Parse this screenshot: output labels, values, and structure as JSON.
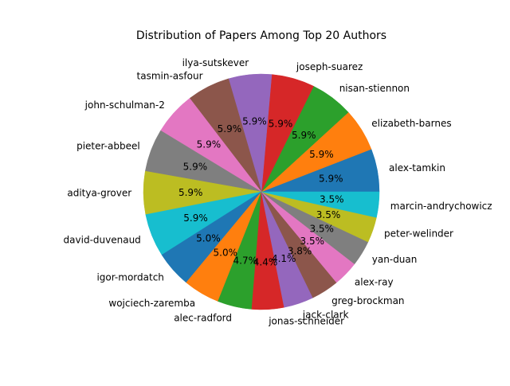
{
  "chart_data": {
    "type": "pie",
    "title": "Distribution of Papers Among Top 20 Authors",
    "start_angle_deg": 0,
    "direction": "counterclockwise",
    "slices": [
      {
        "label": "alex-tamkin",
        "pct_label": "5.9%",
        "value": 5.9,
        "color": "#1f77b4"
      },
      {
        "label": "elizabeth-barnes",
        "pct_label": "5.9%",
        "value": 5.9,
        "color": "#ff7f0e"
      },
      {
        "label": "nisan-stiennon",
        "pct_label": "5.9%",
        "value": 5.9,
        "color": "#2ca02c"
      },
      {
        "label": "joseph-suarez",
        "pct_label": "5.9%",
        "value": 5.9,
        "color": "#d62728"
      },
      {
        "label": "ilya-sutskever",
        "pct_label": "5.9%",
        "value": 5.9,
        "color": "#9467bd"
      },
      {
        "label": "tasmin-asfour",
        "pct_label": "5.9%",
        "value": 5.9,
        "color": "#8c564b"
      },
      {
        "label": "john-schulman-2",
        "pct_label": "5.9%",
        "value": 5.9,
        "color": "#e377c2"
      },
      {
        "label": "pieter-abbeel",
        "pct_label": "5.9%",
        "value": 5.9,
        "color": "#7f7f7f"
      },
      {
        "label": "aditya-grover",
        "pct_label": "5.9%",
        "value": 5.9,
        "color": "#bcbd22"
      },
      {
        "label": "david-duvenaud",
        "pct_label": "5.9%",
        "value": 5.9,
        "color": "#17becf"
      },
      {
        "label": "igor-mordatch",
        "pct_label": "5.0%",
        "value": 5.0,
        "color": "#1f77b4"
      },
      {
        "label": "wojciech-zaremba",
        "pct_label": "5.0%",
        "value": 5.0,
        "color": "#ff7f0e"
      },
      {
        "label": "alec-radford",
        "pct_label": "4.7%",
        "value": 4.7,
        "color": "#2ca02c"
      },
      {
        "label": "jonas-schneider",
        "pct_label": "4.4%",
        "value": 4.4,
        "color": "#d62728"
      },
      {
        "label": "jack-clark",
        "pct_label": "4.1%",
        "value": 4.1,
        "color": "#9467bd"
      },
      {
        "label": "greg-brockman",
        "pct_label": "3.8%",
        "value": 3.8,
        "color": "#8c564b"
      },
      {
        "label": "alex-ray",
        "pct_label": "3.5%",
        "value": 3.5,
        "color": "#e377c2"
      },
      {
        "label": "yan-duan",
        "pct_label": "3.5%",
        "value": 3.5,
        "color": "#7f7f7f"
      },
      {
        "label": "peter-welinder",
        "pct_label": "3.5%",
        "value": 3.5,
        "color": "#bcbd22"
      },
      {
        "label": "marcin-andrychowicz",
        "pct_label": "3.5%",
        "value": 3.5,
        "color": "#17becf"
      }
    ]
  }
}
